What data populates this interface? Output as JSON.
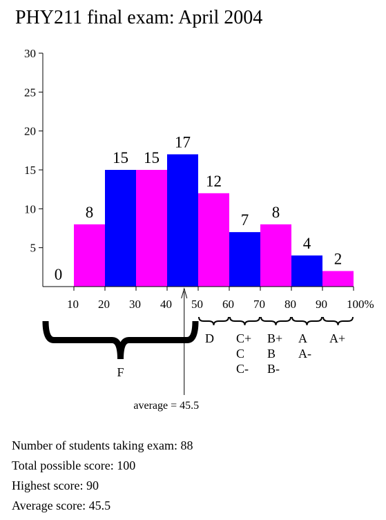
{
  "chart_data": {
    "type": "histogram",
    "title": "PHY211 final exam: April 2004",
    "bins": [
      0,
      10,
      20,
      30,
      40,
      50,
      60,
      70,
      80,
      90,
      100
    ],
    "values": [
      0,
      8,
      15,
      15,
      17,
      12,
      7,
      8,
      4,
      2
    ],
    "colors": [
      "#0000ff",
      "#ff00ff",
      "#0000ff",
      "#ff00ff",
      "#0000ff",
      "#ff00ff",
      "#0000ff",
      "#ff00ff",
      "#0000ff",
      "#ff00ff"
    ],
    "xlim": [
      0,
      100
    ],
    "xticks": [
      10,
      20,
      30,
      40,
      50,
      60,
      70,
      80,
      90,
      {
        "value": 100,
        "label": "100%"
      }
    ],
    "ylim": [
      0,
      30
    ],
    "yticks": [
      5,
      10,
      15,
      20,
      25,
      30
    ],
    "grades": [
      {
        "from": 0,
        "to": 50,
        "labels": [
          "F"
        ]
      },
      {
        "from": 50,
        "to": 60,
        "labels": [
          "D"
        ]
      },
      {
        "from": 60,
        "to": 70,
        "labels": [
          "C+",
          "C",
          "C-"
        ]
      },
      {
        "from": 70,
        "to": 80,
        "labels": [
          "B+",
          "B",
          "B-"
        ]
      },
      {
        "from": 80,
        "to": 90,
        "labels": [
          "A",
          "A-"
        ]
      },
      {
        "from": 90,
        "to": 100,
        "labels": [
          "A+"
        ]
      }
    ],
    "average": {
      "value": 45.5,
      "label": "average = 45.5"
    },
    "notes": [
      "Number of students taking exam: 88",
      "Total possible score: 100",
      "Highest score: 90",
      "Average score: 45.5"
    ]
  }
}
